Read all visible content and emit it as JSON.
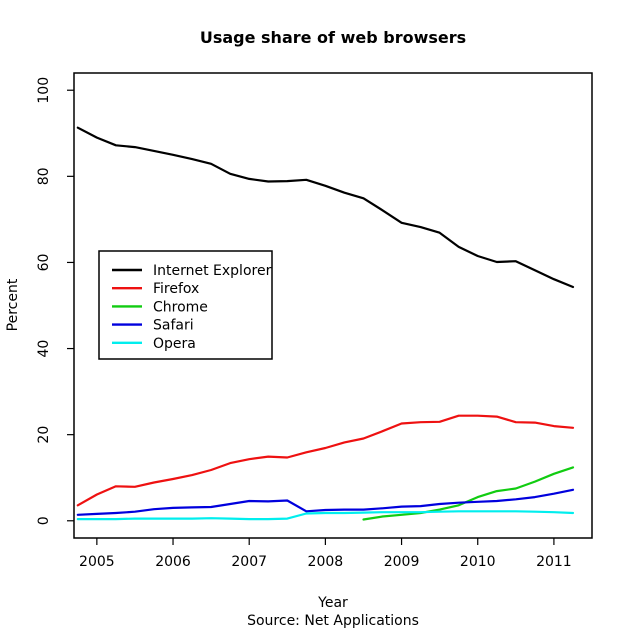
{
  "chart_data": {
    "type": "line",
    "title": "Usage share of web browsers",
    "xlabel": "Year",
    "ylabel": "Percent",
    "source_note": "Source:  Net Applications",
    "xlim": [
      2004.7,
      2011.5
    ],
    "ylim": [
      -4,
      104
    ],
    "x_ticks": [
      2005,
      2006,
      2007,
      2008,
      2009,
      2010,
      2011
    ],
    "y_ticks": [
      0,
      20,
      40,
      60,
      80,
      100
    ],
    "grid": false,
    "legend_position": "middle-left",
    "series": [
      {
        "name": "Internet Explorer",
        "color": "#000000",
        "x": [
          2004.75,
          2005.0,
          2005.25,
          2005.5,
          2005.75,
          2006.0,
          2006.25,
          2006.5,
          2006.75,
          2007.0,
          2007.25,
          2007.5,
          2007.75,
          2008.0,
          2008.25,
          2008.5,
          2008.75,
          2009.0,
          2009.25,
          2009.5,
          2009.75,
          2010.0,
          2010.25,
          2010.5,
          2010.75,
          2011.0,
          2011.25
        ],
        "values": [
          91.3,
          89.0,
          87.2,
          86.8,
          85.9,
          85.0,
          84.0,
          82.9,
          80.6,
          79.4,
          78.8,
          78.9,
          79.2,
          77.8,
          76.2,
          74.9,
          72.1,
          69.2,
          68.2,
          66.9,
          63.6,
          61.5,
          60.1,
          60.3,
          58.2,
          56.1,
          54.3
        ]
      },
      {
        "name": "Firefox",
        "color": "#ee1111",
        "x": [
          2004.75,
          2005.0,
          2005.25,
          2005.5,
          2005.75,
          2006.0,
          2006.25,
          2006.5,
          2006.75,
          2007.0,
          2007.25,
          2007.5,
          2007.75,
          2008.0,
          2008.25,
          2008.5,
          2008.75,
          2009.0,
          2009.25,
          2009.5,
          2009.75,
          2010.0,
          2010.25,
          2010.5,
          2010.75,
          2011.0,
          2011.25
        ],
        "values": [
          3.6,
          6.1,
          8.0,
          7.9,
          8.9,
          9.7,
          10.6,
          11.8,
          13.4,
          14.3,
          14.9,
          14.7,
          15.9,
          16.9,
          18.2,
          19.1,
          20.8,
          22.6,
          22.9,
          23.0,
          24.4,
          24.4,
          24.2,
          22.9,
          22.8,
          22.0,
          21.6
        ]
      },
      {
        "name": "Chrome",
        "color": "#11cc11",
        "x": [
          2008.5,
          2008.75,
          2009.0,
          2009.25,
          2009.5,
          2009.75,
          2010.0,
          2010.25,
          2010.5,
          2010.75,
          2011.0,
          2011.25
        ],
        "values": [
          0.3,
          1.0,
          1.4,
          1.8,
          2.6,
          3.6,
          5.5,
          6.9,
          7.5,
          9.1,
          10.9,
          12.4
        ]
      },
      {
        "name": "Safari",
        "color": "#0000dd",
        "x": [
          2004.75,
          2005.0,
          2005.25,
          2005.5,
          2005.75,
          2006.0,
          2006.25,
          2006.5,
          2006.75,
          2007.0,
          2007.25,
          2007.5,
          2007.75,
          2008.0,
          2008.25,
          2008.5,
          2008.75,
          2009.0,
          2009.25,
          2009.5,
          2009.75,
          2010.0,
          2010.25,
          2010.5,
          2010.75,
          2011.0,
          2011.25
        ],
        "values": [
          1.4,
          1.6,
          1.8,
          2.1,
          2.7,
          3.0,
          3.1,
          3.2,
          3.9,
          4.6,
          4.5,
          4.7,
          2.2,
          2.5,
          2.6,
          2.6,
          2.9,
          3.3,
          3.4,
          3.9,
          4.2,
          4.4,
          4.6,
          5.0,
          5.5,
          6.3,
          7.2
        ]
      },
      {
        "name": "Opera",
        "color": "#00eeee",
        "x": [
          2004.75,
          2005.0,
          2005.25,
          2005.5,
          2005.75,
          2006.0,
          2006.25,
          2006.5,
          2006.75,
          2007.0,
          2007.25,
          2007.5,
          2007.75,
          2008.0,
          2008.25,
          2008.5,
          2008.75,
          2009.0,
          2009.25,
          2009.5,
          2009.75,
          2010.0,
          2010.25,
          2010.5,
          2010.75,
          2011.0,
          2011.25
        ],
        "values": [
          0.4,
          0.4,
          0.4,
          0.5,
          0.5,
          0.5,
          0.5,
          0.6,
          0.5,
          0.4,
          0.4,
          0.5,
          1.7,
          1.8,
          1.8,
          1.9,
          2.0,
          2.0,
          2.0,
          2.1,
          2.2,
          2.2,
          2.2,
          2.2,
          2.1,
          2.0,
          1.8
        ]
      }
    ]
  }
}
